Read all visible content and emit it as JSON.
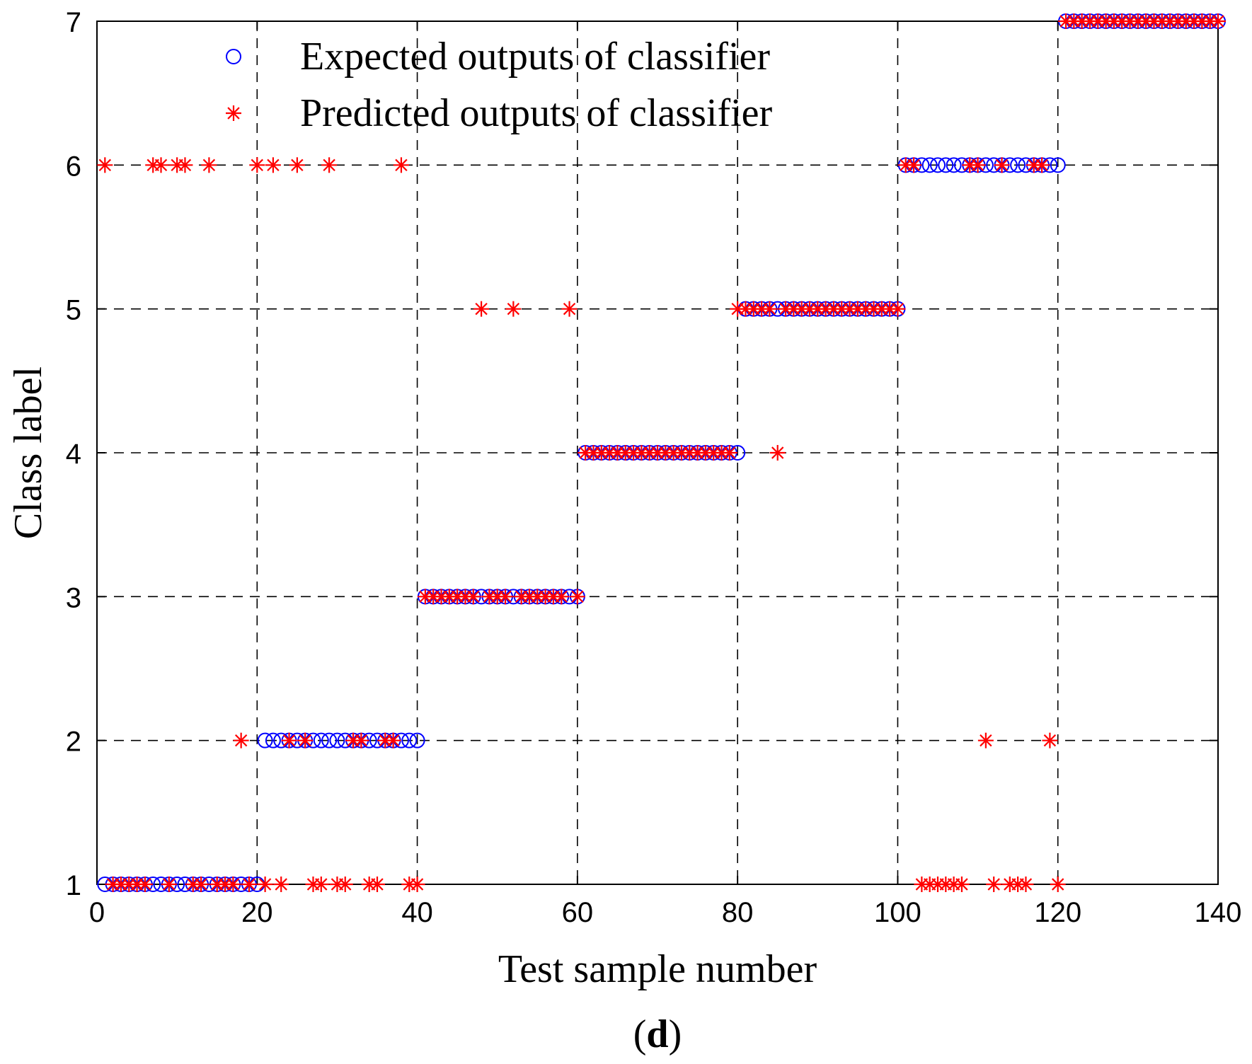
{
  "chart_data": {
    "type": "scatter",
    "title": "",
    "xlabel": "Test sample number",
    "ylabel": "Class label",
    "caption_prefix": "(",
    "caption_letter": "d",
    "caption_suffix": ")",
    "xlim": [
      0,
      140
    ],
    "ylim": [
      1,
      7
    ],
    "xticks": [
      0,
      20,
      40,
      60,
      80,
      100,
      120,
      140
    ],
    "yticks": [
      1,
      2,
      3,
      4,
      5,
      6,
      7
    ],
    "grid": true,
    "legend_position": "top-left",
    "series": [
      {
        "name": "Expected outputs of classifier",
        "marker": "circle",
        "color": "#0000ff",
        "points": [
          [
            1,
            1
          ],
          [
            2,
            1
          ],
          [
            3,
            1
          ],
          [
            4,
            1
          ],
          [
            5,
            1
          ],
          [
            6,
            1
          ],
          [
            7,
            1
          ],
          [
            8,
            1
          ],
          [
            9,
            1
          ],
          [
            10,
            1
          ],
          [
            11,
            1
          ],
          [
            12,
            1
          ],
          [
            13,
            1
          ],
          [
            14,
            1
          ],
          [
            15,
            1
          ],
          [
            16,
            1
          ],
          [
            17,
            1
          ],
          [
            18,
            1
          ],
          [
            19,
            1
          ],
          [
            20,
            1
          ],
          [
            21,
            2
          ],
          [
            22,
            2
          ],
          [
            23,
            2
          ],
          [
            24,
            2
          ],
          [
            25,
            2
          ],
          [
            26,
            2
          ],
          [
            27,
            2
          ],
          [
            28,
            2
          ],
          [
            29,
            2
          ],
          [
            30,
            2
          ],
          [
            31,
            2
          ],
          [
            32,
            2
          ],
          [
            33,
            2
          ],
          [
            34,
            2
          ],
          [
            35,
            2
          ],
          [
            36,
            2
          ],
          [
            37,
            2
          ],
          [
            38,
            2
          ],
          [
            39,
            2
          ],
          [
            40,
            2
          ],
          [
            41,
            3
          ],
          [
            42,
            3
          ],
          [
            43,
            3
          ],
          [
            44,
            3
          ],
          [
            45,
            3
          ],
          [
            46,
            3
          ],
          [
            47,
            3
          ],
          [
            48,
            3
          ],
          [
            49,
            3
          ],
          [
            50,
            3
          ],
          [
            51,
            3
          ],
          [
            52,
            3
          ],
          [
            53,
            3
          ],
          [
            54,
            3
          ],
          [
            55,
            3
          ],
          [
            56,
            3
          ],
          [
            57,
            3
          ],
          [
            58,
            3
          ],
          [
            59,
            3
          ],
          [
            60,
            3
          ],
          [
            61,
            4
          ],
          [
            62,
            4
          ],
          [
            63,
            4
          ],
          [
            64,
            4
          ],
          [
            65,
            4
          ],
          [
            66,
            4
          ],
          [
            67,
            4
          ],
          [
            68,
            4
          ],
          [
            69,
            4
          ],
          [
            70,
            4
          ],
          [
            71,
            4
          ],
          [
            72,
            4
          ],
          [
            73,
            4
          ],
          [
            74,
            4
          ],
          [
            75,
            4
          ],
          [
            76,
            4
          ],
          [
            77,
            4
          ],
          [
            78,
            4
          ],
          [
            79,
            4
          ],
          [
            80,
            4
          ],
          [
            81,
            5
          ],
          [
            82,
            5
          ],
          [
            83,
            5
          ],
          [
            84,
            5
          ],
          [
            85,
            5
          ],
          [
            86,
            5
          ],
          [
            87,
            5
          ],
          [
            88,
            5
          ],
          [
            89,
            5
          ],
          [
            90,
            5
          ],
          [
            91,
            5
          ],
          [
            92,
            5
          ],
          [
            93,
            5
          ],
          [
            94,
            5
          ],
          [
            95,
            5
          ],
          [
            96,
            5
          ],
          [
            97,
            5
          ],
          [
            98,
            5
          ],
          [
            99,
            5
          ],
          [
            100,
            5
          ],
          [
            101,
            6
          ],
          [
            102,
            6
          ],
          [
            103,
            6
          ],
          [
            104,
            6
          ],
          [
            105,
            6
          ],
          [
            106,
            6
          ],
          [
            107,
            6
          ],
          [
            108,
            6
          ],
          [
            109,
            6
          ],
          [
            110,
            6
          ],
          [
            111,
            6
          ],
          [
            112,
            6
          ],
          [
            113,
            6
          ],
          [
            114,
            6
          ],
          [
            115,
            6
          ],
          [
            116,
            6
          ],
          [
            117,
            6
          ],
          [
            118,
            6
          ],
          [
            119,
            6
          ],
          [
            120,
            6
          ],
          [
            121,
            7
          ],
          [
            122,
            7
          ],
          [
            123,
            7
          ],
          [
            124,
            7
          ],
          [
            125,
            7
          ],
          [
            126,
            7
          ],
          [
            127,
            7
          ],
          [
            128,
            7
          ],
          [
            129,
            7
          ],
          [
            130,
            7
          ],
          [
            131,
            7
          ],
          [
            132,
            7
          ],
          [
            133,
            7
          ],
          [
            134,
            7
          ],
          [
            135,
            7
          ],
          [
            136,
            7
          ],
          [
            137,
            7
          ],
          [
            138,
            7
          ],
          [
            139,
            7
          ],
          [
            140,
            7
          ]
        ]
      },
      {
        "name": "Predicted outputs of classifier",
        "marker": "asterisk",
        "color": "#ff0000",
        "points": [
          [
            1,
            6
          ],
          [
            2,
            1
          ],
          [
            3,
            1
          ],
          [
            4,
            1
          ],
          [
            5,
            1
          ],
          [
            6,
            1
          ],
          [
            7,
            6
          ],
          [
            8,
            6
          ],
          [
            9,
            1
          ],
          [
            10,
            6
          ],
          [
            11,
            6
          ],
          [
            12,
            1
          ],
          [
            13,
            1
          ],
          [
            14,
            6
          ],
          [
            15,
            1
          ],
          [
            16,
            1
          ],
          [
            17,
            1
          ],
          [
            18,
            2
          ],
          [
            19,
            1
          ],
          [
            20,
            6
          ],
          [
            21,
            1
          ],
          [
            22,
            6
          ],
          [
            23,
            1
          ],
          [
            24,
            2
          ],
          [
            25,
            6
          ],
          [
            26,
            2
          ],
          [
            27,
            1
          ],
          [
            28,
            1
          ],
          [
            29,
            6
          ],
          [
            30,
            1
          ],
          [
            31,
            1
          ],
          [
            32,
            2
          ],
          [
            33,
            2
          ],
          [
            34,
            1
          ],
          [
            35,
            1
          ],
          [
            36,
            2
          ],
          [
            37,
            2
          ],
          [
            38,
            6
          ],
          [
            39,
            1
          ],
          [
            40,
            1
          ],
          [
            41,
            3
          ],
          [
            42,
            3
          ],
          [
            43,
            3
          ],
          [
            44,
            3
          ],
          [
            45,
            3
          ],
          [
            46,
            3
          ],
          [
            47,
            3
          ],
          [
            48,
            5
          ],
          [
            49,
            3
          ],
          [
            50,
            3
          ],
          [
            51,
            3
          ],
          [
            52,
            5
          ],
          [
            53,
            3
          ],
          [
            54,
            3
          ],
          [
            55,
            3
          ],
          [
            56,
            3
          ],
          [
            57,
            3
          ],
          [
            58,
            3
          ],
          [
            59,
            5
          ],
          [
            60,
            3
          ],
          [
            61,
            4
          ],
          [
            62,
            4
          ],
          [
            63,
            4
          ],
          [
            64,
            4
          ],
          [
            65,
            4
          ],
          [
            66,
            4
          ],
          [
            67,
            4
          ],
          [
            68,
            4
          ],
          [
            69,
            4
          ],
          [
            70,
            4
          ],
          [
            71,
            4
          ],
          [
            72,
            4
          ],
          [
            73,
            4
          ],
          [
            74,
            4
          ],
          [
            75,
            4
          ],
          [
            76,
            4
          ],
          [
            77,
            4
          ],
          [
            78,
            4
          ],
          [
            79,
            4
          ],
          [
            85,
            4
          ],
          [
            80,
            5
          ],
          [
            81,
            5
          ],
          [
            82,
            5
          ],
          [
            83,
            5
          ],
          [
            84,
            5
          ],
          [
            86,
            5
          ],
          [
            87,
            5
          ],
          [
            88,
            5
          ],
          [
            89,
            5
          ],
          [
            90,
            5
          ],
          [
            91,
            5
          ],
          [
            92,
            5
          ],
          [
            93,
            5
          ],
          [
            94,
            5
          ],
          [
            95,
            5
          ],
          [
            96,
            5
          ],
          [
            97,
            5
          ],
          [
            98,
            5
          ],
          [
            99,
            5
          ],
          [
            100,
            5
          ],
          [
            101,
            6
          ],
          [
            102,
            6
          ],
          [
            103,
            1
          ],
          [
            104,
            1
          ],
          [
            105,
            1
          ],
          [
            106,
            1
          ],
          [
            107,
            1
          ],
          [
            108,
            1
          ],
          [
            109,
            6
          ],
          [
            110,
            6
          ],
          [
            111,
            2
          ],
          [
            112,
            1
          ],
          [
            113,
            6
          ],
          [
            114,
            1
          ],
          [
            115,
            1
          ],
          [
            116,
            1
          ],
          [
            117,
            6
          ],
          [
            118,
            6
          ],
          [
            119,
            2
          ],
          [
            120,
            1
          ],
          [
            121,
            7
          ],
          [
            122,
            7
          ],
          [
            123,
            7
          ],
          [
            124,
            7
          ],
          [
            125,
            7
          ],
          [
            126,
            7
          ],
          [
            127,
            7
          ],
          [
            128,
            7
          ],
          [
            129,
            7
          ],
          [
            130,
            7
          ],
          [
            131,
            7
          ],
          [
            132,
            7
          ],
          [
            133,
            7
          ],
          [
            134,
            7
          ],
          [
            135,
            7
          ],
          [
            136,
            7
          ],
          [
            137,
            7
          ],
          [
            138,
            7
          ],
          [
            139,
            7
          ],
          [
            140,
            7
          ]
        ]
      }
    ]
  }
}
